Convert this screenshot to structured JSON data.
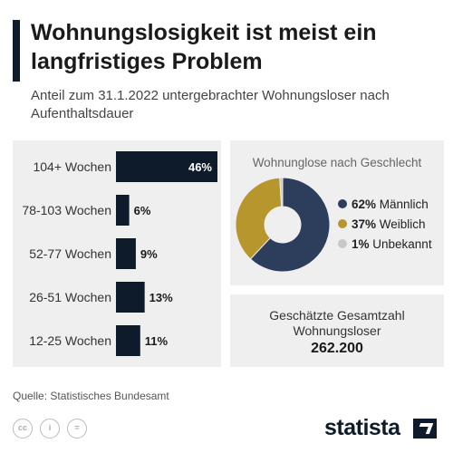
{
  "header": {
    "title": "Wohnungslosigkeit ist meist ein langfristiges Problem",
    "subtitle": "Anteil zum 31.1.2022 untergebrachter Wohnungsloser nach Aufenthaltsdauer"
  },
  "chart_data": [
    {
      "type": "bar",
      "orientation": "horizontal",
      "categories": [
        "104+ Wochen",
        "78-103 Wochen",
        "52-77 Wochen",
        "26-51 Wochen",
        "12-25 Wochen"
      ],
      "values": [
        46,
        6,
        9,
        13,
        11
      ],
      "value_labels": [
        "46%",
        "6%",
        "9%",
        "13%",
        "11%"
      ],
      "unit": "%",
      "xlim": [
        0,
        46
      ],
      "color": "#0d1b2a"
    },
    {
      "type": "pie",
      "style": "donut",
      "title": "Wohnunglose nach Geschlecht",
      "slices": [
        {
          "label": "Männlich",
          "value": 62,
          "pct_label": "62%",
          "color": "#2c3e5c"
        },
        {
          "label": "Weiblich",
          "value": 37,
          "pct_label": "37%",
          "color": "#b8962e"
        },
        {
          "label": "Unbekannt",
          "value": 1,
          "pct_label": "1%",
          "color": "#c8c8c8"
        }
      ],
      "legend_position": "right"
    }
  ],
  "total": {
    "label": "Geschätzte Gesamtzahl Wohnungsloser",
    "value": "262.200"
  },
  "footer": {
    "source": "Quelle: Statistisches Bundesamt",
    "license_icons": [
      "cc-icon",
      "by-icon",
      "nd-icon"
    ],
    "license_glyphs": [
      "cc",
      "i",
      "="
    ],
    "brand": "statista"
  }
}
